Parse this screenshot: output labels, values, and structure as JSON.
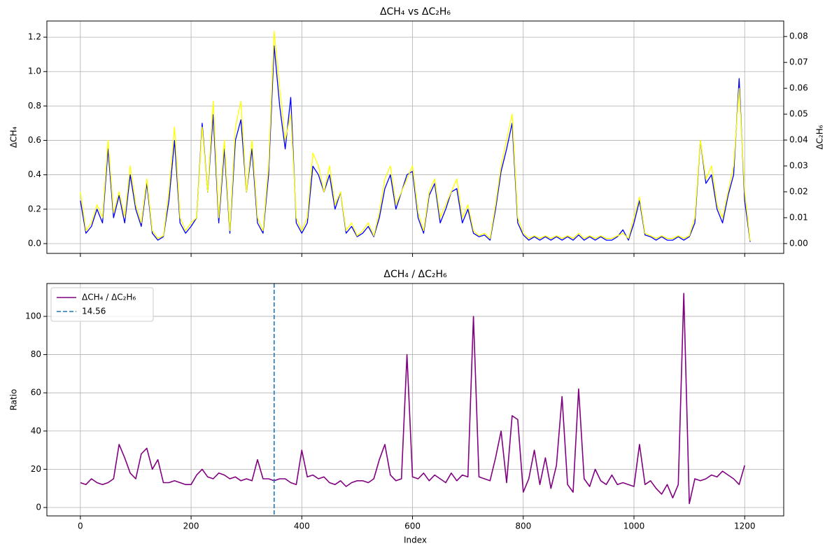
{
  "chart_data": [
    {
      "type": "line",
      "title": "ΔCH₄ vs ΔC₂H₆",
      "ylabel": "ΔCH₄",
      "y2label": "ΔC₂H₆",
      "x": [
        0,
        10,
        20,
        30,
        40,
        50,
        60,
        70,
        80,
        90,
        100,
        110,
        120,
        130,
        140,
        150,
        160,
        170,
        180,
        190,
        200,
        210,
        220,
        230,
        240,
        250,
        260,
        270,
        280,
        290,
        300,
        310,
        320,
        330,
        340,
        350,
        360,
        370,
        380,
        390,
        400,
        410,
        420,
        430,
        440,
        450,
        460,
        470,
        480,
        490,
        500,
        510,
        520,
        530,
        540,
        550,
        560,
        570,
        580,
        590,
        600,
        610,
        620,
        630,
        640,
        650,
        660,
        670,
        680,
        690,
        700,
        710,
        720,
        730,
        740,
        750,
        760,
        770,
        780,
        790,
        800,
        810,
        820,
        830,
        840,
        850,
        860,
        870,
        880,
        890,
        900,
        910,
        920,
        930,
        940,
        950,
        960,
        970,
        980,
        990,
        1000,
        1010,
        1020,
        1030,
        1040,
        1050,
        1060,
        1070,
        1080,
        1090,
        1100,
        1110,
        1120,
        1130,
        1140,
        1150,
        1160,
        1170,
        1180,
        1190,
        1200,
        1210
      ],
      "series": [
        {
          "color": "blue",
          "values": [
            0.25,
            0.06,
            0.1,
            0.2,
            0.12,
            0.55,
            0.15,
            0.28,
            0.12,
            0.4,
            0.2,
            0.1,
            0.35,
            0.06,
            0.02,
            0.04,
            0.25,
            0.6,
            0.12,
            0.06,
            0.1,
            0.15,
            0.7,
            0.3,
            0.75,
            0.12,
            0.55,
            0.06,
            0.6,
            0.72,
            0.3,
            0.55,
            0.12,
            0.06,
            0.4,
            1.15,
            0.8,
            0.55,
            0.85,
            0.12,
            0.06,
            0.12,
            0.45,
            0.4,
            0.3,
            0.4,
            0.2,
            0.3,
            0.06,
            0.1,
            0.04,
            0.06,
            0.1,
            0.04,
            0.15,
            0.32,
            0.4,
            0.2,
            0.3,
            0.4,
            0.42,
            0.15,
            0.06,
            0.28,
            0.35,
            0.12,
            0.2,
            0.3,
            0.32,
            0.12,
            0.2,
            0.06,
            0.04,
            0.05,
            0.02,
            0.2,
            0.42,
            0.55,
            0.7,
            0.12,
            0.05,
            0.02,
            0.04,
            0.02,
            0.04,
            0.02,
            0.04,
            0.02,
            0.04,
            0.02,
            0.05,
            0.02,
            0.04,
            0.02,
            0.04,
            0.02,
            0.02,
            0.04,
            0.08,
            0.02,
            0.12,
            0.25,
            0.05,
            0.04,
            0.02,
            0.04,
            0.02,
            0.02,
            0.04,
            0.02,
            0.04,
            0.12,
            0.6,
            0.35,
            0.4,
            0.2,
            0.12,
            0.28,
            0.4,
            0.96,
            0.25,
            0.01
          ]
        },
        {
          "color": "yellow",
          "axis": "y2",
          "values": [
            0.02,
            0.005,
            0.008,
            0.015,
            0.01,
            0.04,
            0.012,
            0.02,
            0.01,
            0.03,
            0.015,
            0.008,
            0.025,
            0.005,
            0.002,
            0.003,
            0.02,
            0.045,
            0.01,
            0.005,
            0.008,
            0.01,
            0.045,
            0.02,
            0.055,
            0.01,
            0.04,
            0.005,
            0.045,
            0.055,
            0.02,
            0.04,
            0.01,
            0.005,
            0.03,
            0.082,
            0.06,
            0.04,
            0.05,
            0.01,
            0.005,
            0.01,
            0.035,
            0.03,
            0.02,
            0.03,
            0.015,
            0.02,
            0.005,
            0.008,
            0.003,
            0.005,
            0.008,
            0.003,
            0.012,
            0.025,
            0.03,
            0.015,
            0.02,
            0.025,
            0.03,
            0.012,
            0.005,
            0.02,
            0.025,
            0.01,
            0.015,
            0.02,
            0.025,
            0.01,
            0.015,
            0.005,
            0.003,
            0.004,
            0.002,
            0.015,
            0.03,
            0.04,
            0.05,
            0.01,
            0.004,
            0.002,
            0.003,
            0.002,
            0.003,
            0.002,
            0.003,
            0.002,
            0.003,
            0.002,
            0.004,
            0.002,
            0.003,
            0.002,
            0.003,
            0.002,
            0.002,
            0.003,
            0.004,
            0.002,
            0.01,
            0.018,
            0.004,
            0.003,
            0.002,
            0.003,
            0.002,
            0.002,
            0.003,
            0.002,
            0.003,
            0.01,
            0.04,
            0.025,
            0.03,
            0.015,
            0.01,
            0.02,
            0.03,
            0.06,
            0.02,
            0.001
          ]
        }
      ],
      "xlim": [
        -60.5,
        1270.5
      ],
      "xticks": [
        0,
        200,
        400,
        600,
        800,
        1000,
        1200
      ],
      "ylim": [
        -0.057,
        1.294
      ],
      "yticks": [
        {
          "value": 0,
          "label": "0.0"
        },
        0.2,
        0.4,
        0.6,
        0.8,
        {
          "value": 1,
          "label": "1.0"
        },
        1.2
      ],
      "y2lim": [
        -0.0038,
        0.086
      ],
      "y2ticks": [
        {
          "value": 0,
          "label": "0.00"
        },
        0.01,
        0.02,
        0.03,
        0.04,
        0.05,
        0.06,
        0.07,
        0.08
      ],
      "grid": true
    },
    {
      "type": "line",
      "title": "ΔCH₄ / ΔC₂H₆",
      "xlabel": "Index",
      "ylabel": "Ratio",
      "x": [
        0,
        10,
        20,
        30,
        40,
        50,
        60,
        70,
        80,
        90,
        100,
        110,
        120,
        130,
        140,
        150,
        160,
        170,
        180,
        190,
        200,
        210,
        220,
        230,
        240,
        250,
        260,
        270,
        280,
        290,
        300,
        310,
        320,
        330,
        340,
        350,
        360,
        370,
        380,
        390,
        400,
        410,
        420,
        430,
        440,
        450,
        460,
        470,
        480,
        490,
        500,
        510,
        520,
        530,
        540,
        550,
        560,
        570,
        580,
        590,
        600,
        610,
        620,
        630,
        640,
        650,
        660,
        670,
        680,
        690,
        700,
        710,
        720,
        730,
        740,
        750,
        760,
        770,
        780,
        790,
        800,
        810,
        820,
        830,
        840,
        850,
        860,
        870,
        880,
        890,
        900,
        910,
        920,
        930,
        940,
        950,
        960,
        970,
        980,
        990,
        1000,
        1010,
        1020,
        1030,
        1040,
        1050,
        1060,
        1070,
        1080,
        1090,
        1100,
        1110,
        1120,
        1130,
        1140,
        1150,
        1160,
        1170,
        1180,
        1190,
        1200
      ],
      "series": [
        {
          "name": "ΔCH₄ / ΔC₂H₆",
          "color": "purple",
          "values": [
            13,
            12,
            15,
            13,
            12,
            13,
            15,
            33,
            26,
            18,
            15,
            28,
            31,
            20,
            25,
            13,
            13,
            14,
            13,
            12,
            12,
            17,
            20,
            16,
            15,
            18,
            17,
            15,
            16,
            14,
            15,
            14,
            25,
            15,
            15,
            14,
            15,
            15,
            13,
            12,
            30,
            16,
            17,
            15,
            16,
            13,
            12,
            14,
            11,
            13,
            14,
            14,
            13,
            15,
            25,
            33,
            17,
            14,
            15,
            80,
            16,
            15,
            18,
            14,
            17,
            15,
            13,
            18,
            14,
            17,
            16,
            100,
            16,
            15,
            14,
            26,
            40,
            13,
            48,
            46,
            8,
            15,
            30,
            12,
            26,
            10,
            22,
            58,
            12,
            8,
            62,
            15,
            11,
            20,
            14,
            12,
            17,
            12,
            13,
            12,
            11,
            33,
            12,
            14,
            10,
            7,
            12,
            5,
            12,
            112,
            2,
            15,
            14,
            15,
            17,
            16,
            19,
            17,
            15,
            12,
            22
          ]
        }
      ],
      "vlines": [
        {
          "name": "14.56",
          "x": 350,
          "color": "#1f77b4",
          "dashed": true
        }
      ],
      "xlim": [
        -60.5,
        1270.5
      ],
      "xticks": [
        0,
        200,
        400,
        600,
        800,
        1000,
        1200
      ],
      "ylim": [
        -4.4,
        117.2
      ],
      "yticks": [
        0,
        20,
        40,
        60,
        80,
        100
      ],
      "grid": true,
      "legend": "upper left"
    }
  ]
}
